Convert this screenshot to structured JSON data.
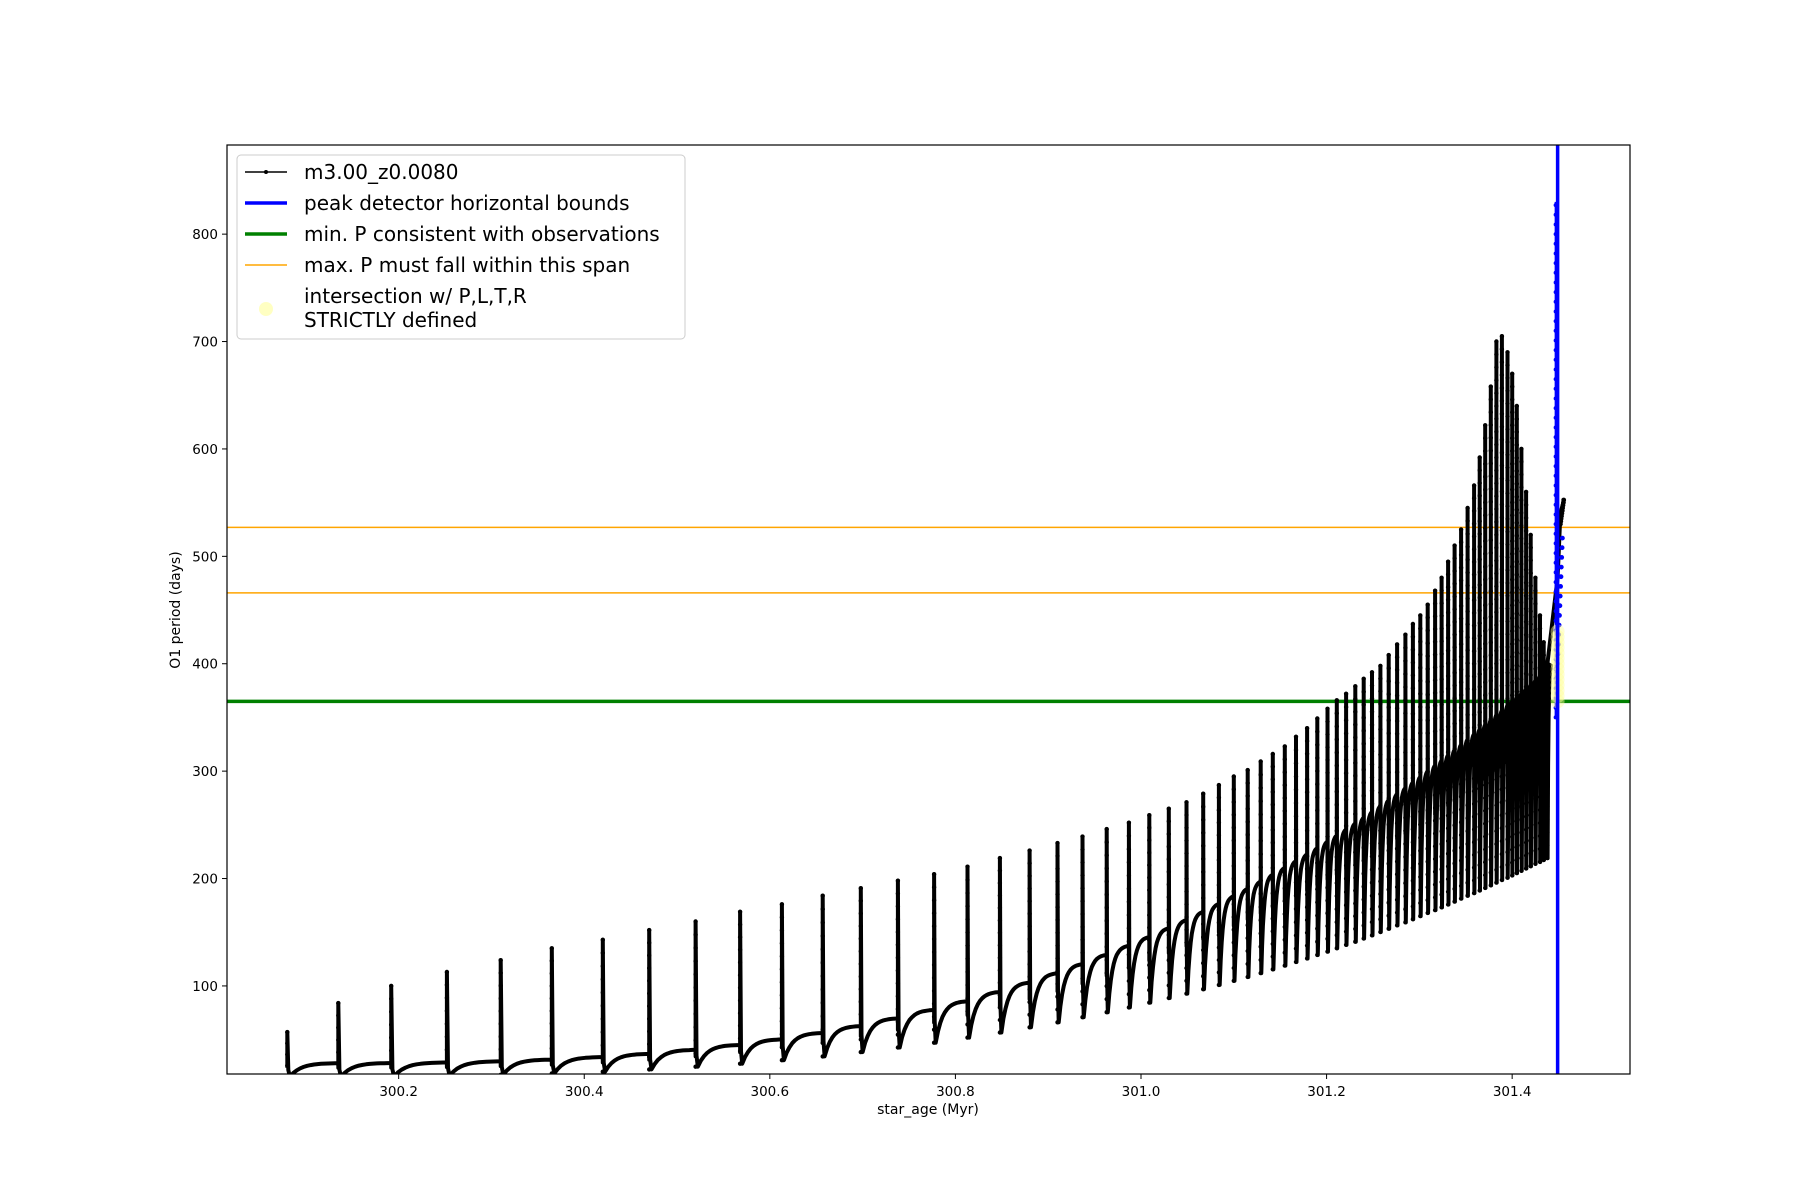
{
  "chart_data": {
    "type": "line",
    "title": "",
    "xlabel": "star_age (Myr)",
    "ylabel": "O1 period (days)",
    "xlim": [
      300.015,
      301.527
    ],
    "ylim": [
      18,
      883
    ],
    "x_ticks": [
      300.2,
      300.4,
      300.6,
      300.8,
      301.0,
      301.2,
      301.4
    ],
    "x_tick_labels": [
      "300.2",
      "300.4",
      "300.6",
      "300.8",
      "301.0",
      "301.2",
      "301.4"
    ],
    "y_ticks": [
      100,
      200,
      300,
      400,
      500,
      600,
      700,
      800
    ],
    "y_tick_labels": [
      "100",
      "200",
      "300",
      "400",
      "500",
      "600",
      "700",
      "800"
    ],
    "grid": false,
    "legend_position": "top-left",
    "model_track": {
      "name": "m3.00_z0.0080",
      "color": "#000000",
      "pulse_ages": [
        300.08,
        300.135,
        300.192,
        300.252,
        300.31,
        300.365,
        300.42,
        300.47,
        300.52,
        300.568,
        300.613,
        300.657,
        300.698,
        300.738,
        300.777,
        300.813,
        300.848,
        300.88,
        300.91,
        300.937,
        300.963,
        300.987,
        301.009,
        301.03,
        301.049,
        301.067,
        301.084,
        301.1,
        301.115,
        301.129,
        301.142,
        301.155,
        301.167,
        301.179,
        301.19,
        301.201,
        301.211,
        301.221,
        301.231,
        301.24,
        301.249,
        301.258,
        301.267,
        301.276,
        301.285,
        301.293,
        301.301,
        301.309,
        301.317,
        301.324,
        301.331,
        301.338,
        301.345,
        301.352,
        301.359,
        301.365,
        301.371,
        301.377,
        301.383,
        301.389,
        301.395,
        301.4,
        301.405,
        301.41,
        301.415,
        301.42,
        301.425,
        301.43,
        301.434,
        301.438
      ],
      "pulse_peaks": [
        57,
        84,
        100,
        113,
        124,
        135,
        143,
        152,
        160,
        169,
        176,
        184,
        191,
        198,
        204,
        211,
        219,
        226,
        233,
        239,
        246,
        252,
        259,
        265,
        271,
        279,
        287,
        295,
        301,
        309,
        316,
        323,
        332,
        340,
        349,
        358,
        366,
        372,
        379,
        386,
        392,
        398,
        408,
        418,
        427,
        437,
        445,
        455,
        468,
        480,
        495,
        510,
        525,
        545,
        566,
        592,
        622,
        658,
        700,
        705,
        690,
        670,
        640,
        600,
        560,
        520,
        480,
        445,
        420,
        400
      ],
      "baseline_start": 28,
      "baseline_end": 395,
      "final_segment": {
        "x": [
          301.438,
          301.449,
          301.452,
          301.456
        ],
        "y": [
          400,
          480,
          540,
          553
        ]
      }
    },
    "peak_detector_bounds": {
      "label": "peak detector horizontal bounds",
      "color": "#0000ff",
      "x": [
        301.449,
        301.449
      ],
      "peak_spike_y": [
        350,
        830
      ]
    },
    "min_period": {
      "label": "min. P consistent with observations",
      "color": "#008000",
      "y": 365
    },
    "max_period_span": {
      "label": "max. P must fall within this span",
      "color": "#ffa500",
      "y": [
        466,
        527
      ]
    },
    "intersection": {
      "label_line1": "intersection w/ P,L,T,R",
      "label_line2": "STRICTLY defined",
      "color": "#ffff99",
      "x": 301.449,
      "y": [
        365,
        430
      ]
    }
  }
}
